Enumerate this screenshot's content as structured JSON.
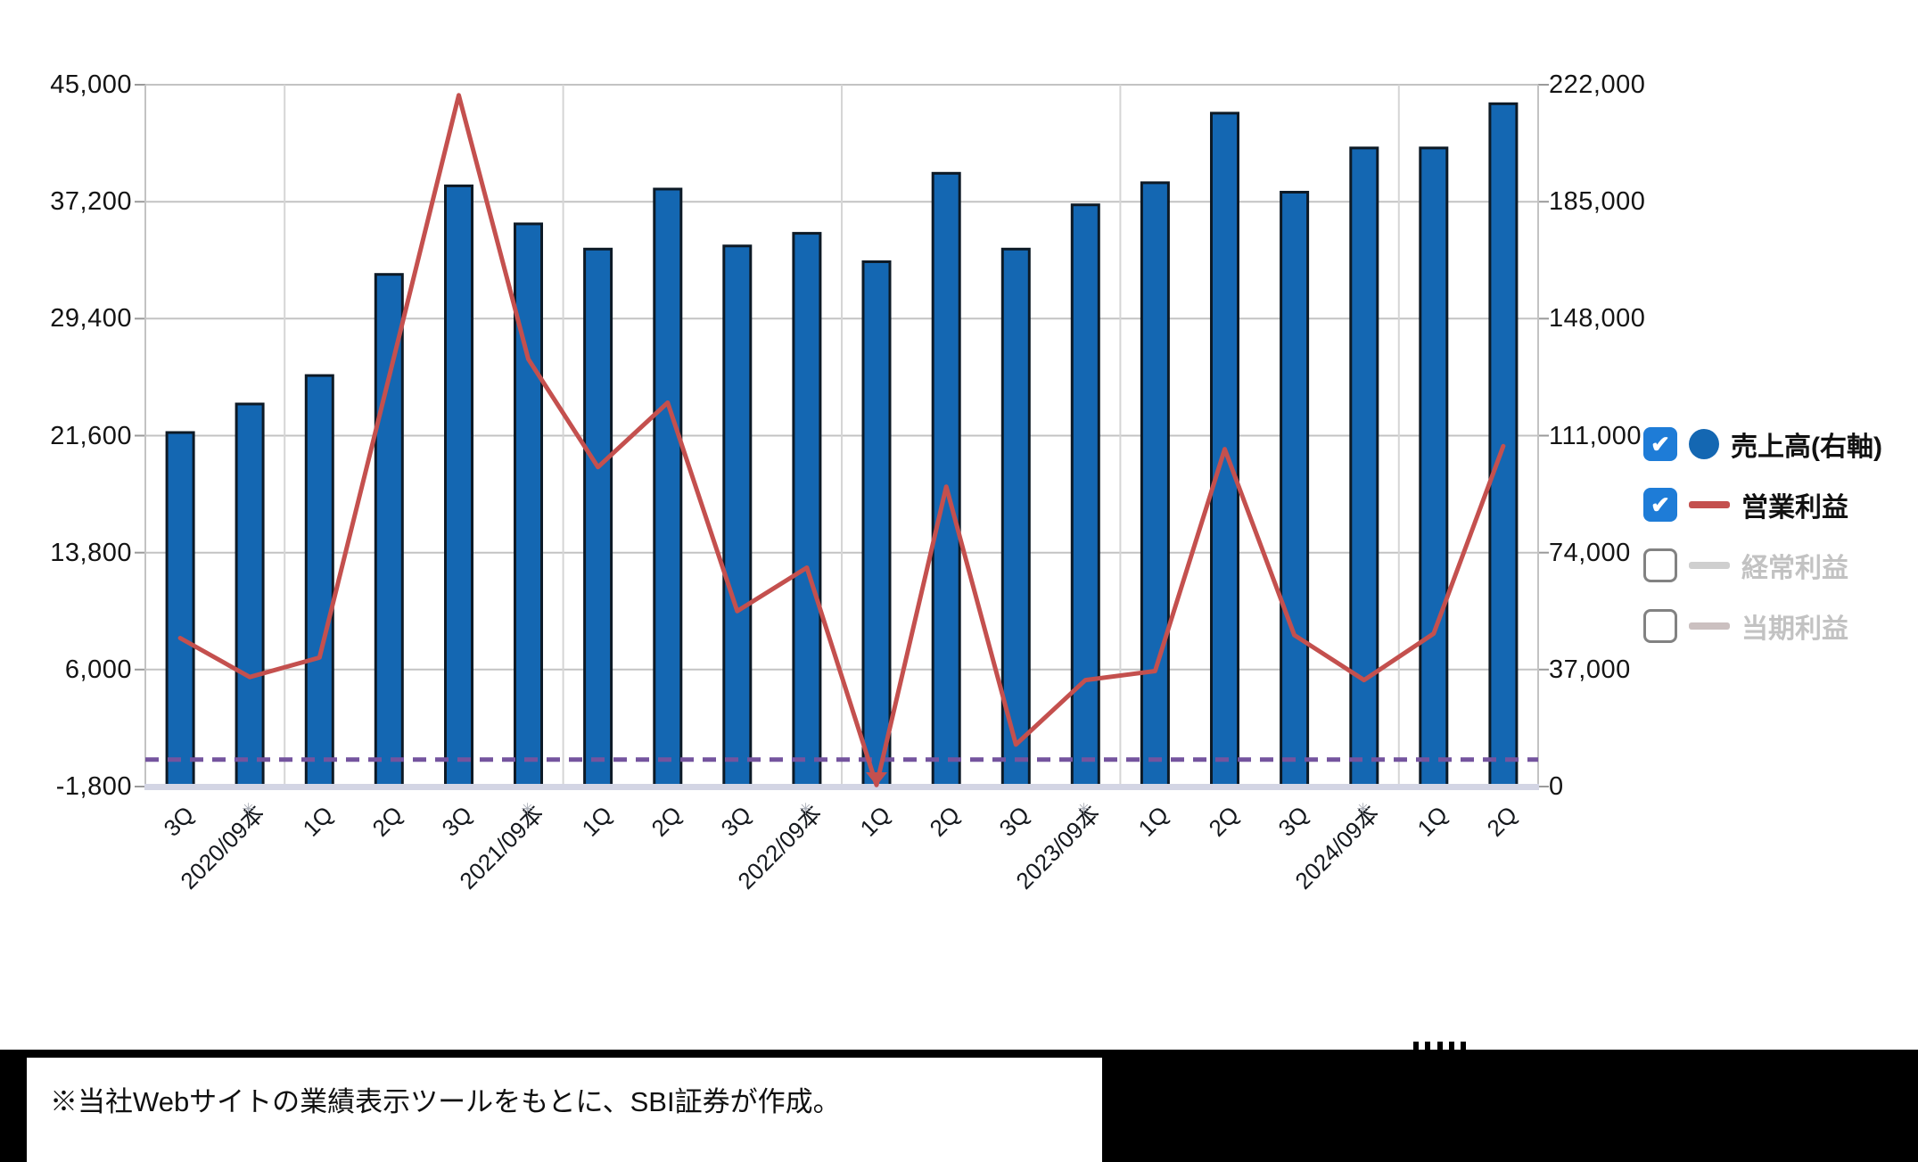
{
  "footer": {
    "note": "※当社Webサイトの業績表示ツールをもとに、SBI証券が作成。",
    "band_color": "#000000"
  },
  "legend": {
    "checkbox_checked_color": "#1E7CD7",
    "items": [
      {
        "label": "売上高(右軸)",
        "checked": true,
        "swatch": "circle",
        "swatch_color": "#1467B2",
        "label_color": "#111111"
      },
      {
        "label": "営業利益",
        "checked": true,
        "swatch": "line",
        "swatch_color": "#C4504E",
        "label_color": "#111111"
      },
      {
        "label": "経常利益",
        "checked": false,
        "swatch": "line",
        "swatch_color": "#CFCFCF",
        "label_color": "#C2C2C2"
      },
      {
        "label": "当期利益",
        "checked": false,
        "swatch": "line",
        "swatch_color": "#CBC0C0",
        "label_color": "#C2C2C2"
      }
    ]
  },
  "chart_data": {
    "type": "combo",
    "categories": [
      "3Q",
      "2020/09本",
      "1Q",
      "2Q",
      "3Q",
      "2021/09本",
      "1Q",
      "2Q",
      "3Q",
      "2022/09本",
      "1Q",
      "2Q",
      "3Q",
      "2023/09本",
      "1Q",
      "2Q",
      "3Q",
      "2024/09本",
      "1Q",
      "2Q"
    ],
    "annual_tick_marker_icon": "small-grey-asterisk",
    "series": [
      {
        "name": "売上高(右軸)",
        "chart_type": "bar",
        "axis": "right",
        "color": "#1467B2",
        "stroke": "#0D1A26",
        "values": [
          112000,
          121000,
          130000,
          162000,
          190000,
          178000,
          170000,
          189000,
          171000,
          175000,
          166000,
          194000,
          170000,
          184000,
          191000,
          213000,
          188000,
          202000,
          202000,
          216000
        ]
      },
      {
        "name": "営業利益",
        "chart_type": "line",
        "axis": "left",
        "color": "#C4504E",
        "values": [
          8100,
          5500,
          6800,
          25500,
          44300,
          26700,
          19500,
          23800,
          9900,
          12800,
          -1700,
          18200,
          1000,
          5300,
          5900,
          20700,
          8300,
          5300,
          8400,
          20900
        ],
        "clipped_below_index": 10
      },
      {
        "name": "経常利益",
        "chart_type": "line",
        "axis": "left",
        "color": "#CFCFCF",
        "enabled": false,
        "values": []
      },
      {
        "name": "当期利益",
        "chart_type": "line",
        "axis": "left",
        "color": "#CBC0C0",
        "enabled": false,
        "values": []
      }
    ],
    "left_axis": {
      "min": -1800,
      "max": 45000,
      "ticks": [
        45000,
        37200,
        29400,
        21600,
        13800,
        6000,
        -1800
      ]
    },
    "right_axis": {
      "min": 0,
      "max": 222000,
      "ticks": [
        222000,
        185000,
        148000,
        111000,
        74000,
        37000,
        0
      ]
    },
    "zero_dashed_line": {
      "axis": "left",
      "value": 0,
      "color": "#74549E",
      "style": "dashed"
    },
    "grid": true,
    "legend_position": "right",
    "gridline_color": "#C3C3C3",
    "separator_color": "#D5D5D5",
    "baseline_color": "#D3D5E4",
    "tick_color": "#9A9A9A"
  }
}
